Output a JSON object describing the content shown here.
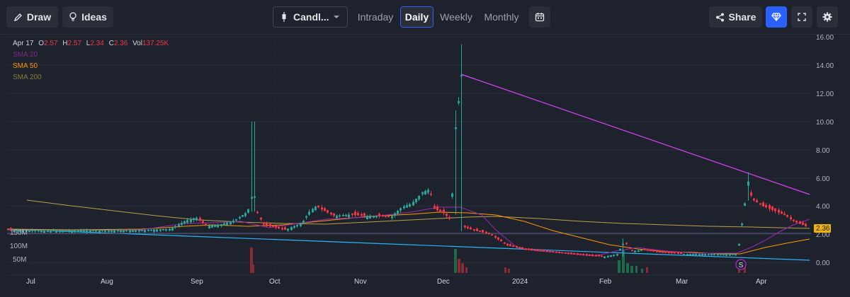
{
  "toolbar": {
    "draw_label": "Draw",
    "ideas_label": "Ideas",
    "chart_type_label": "Candl...",
    "tabs": [
      {
        "label": "Intraday",
        "active": false
      },
      {
        "label": "Daily",
        "active": true
      },
      {
        "label": "Weekly",
        "active": false
      },
      {
        "label": "Monthly",
        "active": false
      }
    ],
    "share_label": "Share"
  },
  "legend": {
    "date": "Apr 17",
    "open_label": "O",
    "open": "2.57",
    "high_label": "H",
    "high": "2.57",
    "low_label": "L",
    "low": "2.34",
    "close_label": "C",
    "close": "2.36",
    "vol_label": "Vol",
    "vol": "137.25K",
    "sma20": "SMA 20",
    "sma50": "SMA 50",
    "sma200": "SMA 200"
  },
  "colors": {
    "up": "#26a69a",
    "down": "#f23645",
    "sma20": "#9c27b0",
    "sma50": "#ff9800",
    "sma200": "#b8a04a",
    "trend_upper": "#e040fb",
    "trend_lower": "#29b6f6",
    "accent": "#2962ff"
  },
  "marker": {
    "symbol": "S"
  },
  "price_tag": "2.36",
  "chart_data": {
    "type": "candlestick",
    "y_ticks": [
      "16.00",
      "14.00",
      "12.00",
      "10.00",
      "8.00",
      "6.00",
      "4.00",
      "2.00",
      "0.00"
    ],
    "y_range": [
      0,
      16
    ],
    "volume_ticks": [
      "150M",
      "100M",
      "50M"
    ],
    "x_labels": [
      "Jul",
      "Aug",
      "Sep",
      "Oct",
      "Nov",
      "Dec",
      "2024",
      "Feb",
      "Mar",
      "Apr"
    ],
    "last_close": 2.36,
    "notable_points": [
      {
        "date": "Sep (late)",
        "high": 10.0
      },
      {
        "date": "Dec (early)",
        "high": 15.5,
        "open": 13.3
      },
      {
        "date": "Mar (late)",
        "high": 6.4
      }
    ],
    "series": [
      {
        "name": "SMA 20"
      },
      {
        "name": "SMA 50"
      },
      {
        "name": "SMA 200"
      }
    ]
  }
}
